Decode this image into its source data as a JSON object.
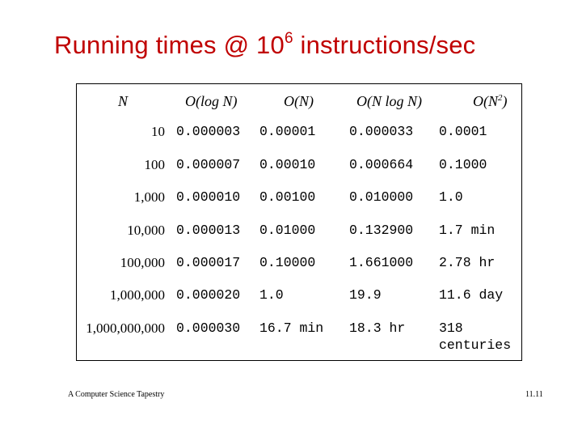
{
  "title": {
    "text": "Running times @ 10",
    "exp": "6",
    "rest": " instructions/sec"
  },
  "headers": {
    "n": "N",
    "logn": "O(log N)",
    "on": "O(N)",
    "nlogn": "O(N log N)",
    "n2_base": "O(N",
    "n2_exp": "2",
    "n2_close": ")"
  },
  "rows": [
    {
      "n": "10",
      "logn": "0.000003",
      "on": "0.00001",
      "nlogn": "0.000033",
      "n2": "0.0001"
    },
    {
      "n": "100",
      "logn": "0.000007",
      "on": "0.00010",
      "nlogn": "0.000664",
      "n2": "0.1000"
    },
    {
      "n": "1,000",
      "logn": "0.000010",
      "on": "0.00100",
      "nlogn": "0.010000",
      "n2": "1.0"
    },
    {
      "n": "10,000",
      "logn": "0.000013",
      "on": "0.01000",
      "nlogn": "0.132900",
      "n2": "1.7 min"
    },
    {
      "n": "100,000",
      "logn": "0.000017",
      "on": "0.10000",
      "nlogn": "1.661000",
      "n2": "2.78 hr"
    },
    {
      "n": "1,000,000",
      "logn": "0.000020",
      "on": "1.0",
      "nlogn": "19.9",
      "n2": "11.6 day"
    },
    {
      "n": "1,000,000,000",
      "logn": "0.000030",
      "on": "16.7 min",
      "nlogn": "18.3 hr",
      "n2": "318 centuries"
    }
  ],
  "footer": {
    "left": "A Computer Science Tapestry",
    "right": "11.11"
  }
}
